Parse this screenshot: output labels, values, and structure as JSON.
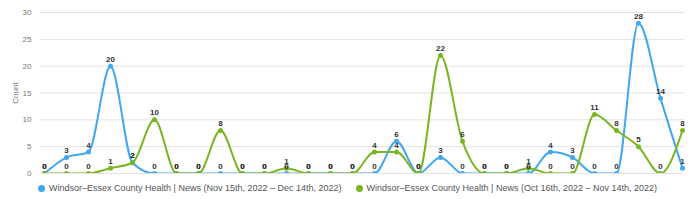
{
  "chart_data": {
    "type": "line",
    "y_label": "Count",
    "categories": [
      null,
      null,
      null,
      null,
      null,
      null,
      null,
      null,
      null,
      null,
      null,
      null,
      null,
      null,
      null,
      null,
      null,
      null,
      null,
      null,
      null,
      null,
      null,
      null,
      null,
      null,
      null,
      null,
      null,
      null
    ],
    "series": [
      {
        "name": "Windsor–Essex County Health | News (Nov 15th, 2022 – Dec 14th, 2022)",
        "color": "#41a8f0",
        "values": [
          0,
          3,
          4,
          20,
          2,
          0,
          0,
          0,
          0,
          0,
          0,
          0,
          0,
          0,
          0,
          0,
          6,
          0,
          3,
          0,
          0,
          0,
          0,
          4,
          3,
          0,
          0,
          28,
          14,
          1
        ]
      },
      {
        "name": "Windsor–Essex County Health | News (Oct 16th, 2022 – Nov 14th, 2022)",
        "color": "#7ab624",
        "values": [
          0,
          0,
          0,
          1,
          2,
          10,
          0,
          0,
          8,
          0,
          0,
          1,
          0,
          0,
          0,
          4,
          4,
          0,
          22,
          6,
          0,
          0,
          1,
          0,
          0,
          11,
          8,
          5,
          0,
          8
        ]
      }
    ],
    "ylim": [
      0,
      30
    ],
    "yticks": [
      0,
      5,
      10,
      15,
      20,
      25,
      30
    ],
    "grid": true,
    "data_labels": true,
    "legend": "bottom",
    "marker": "circle",
    "line_style": "smooth",
    "tick_labels": "y"
  }
}
